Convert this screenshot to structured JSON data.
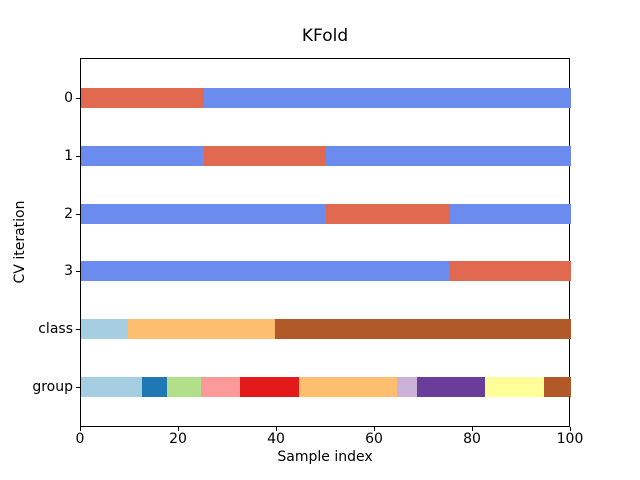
{
  "chart_data": {
    "type": "bar",
    "subtype": "cross-validation-indices",
    "orientation": "horizontal",
    "title": "KFold",
    "xlabel": "Sample index",
    "ylabel": "CV iteration",
    "xlim": [
      0,
      100
    ],
    "ylim_top_to_bottom": [
      -0.2,
      6.2
    ],
    "x_ticks": [
      0,
      20,
      40,
      60,
      80,
      100
    ],
    "grid": false,
    "legend": "none",
    "bar_thickness_px": 20,
    "colors": {
      "train": "#6b8cee",
      "test": "#e0694f",
      "axis": "#000000",
      "background": "#ffffff"
    },
    "rows": [
      {
        "label": "0",
        "y": 0.5,
        "segments": [
          {
            "start": 0,
            "end": 25,
            "role": "test",
            "color": "#e0694f"
          },
          {
            "start": 25,
            "end": 100,
            "role": "train",
            "color": "#6b8cee"
          }
        ]
      },
      {
        "label": "1",
        "y": 1.5,
        "segments": [
          {
            "start": 0,
            "end": 25,
            "role": "train",
            "color": "#6b8cee"
          },
          {
            "start": 25,
            "end": 50,
            "role": "test",
            "color": "#e0694f"
          },
          {
            "start": 50,
            "end": 100,
            "role": "train",
            "color": "#6b8cee"
          }
        ]
      },
      {
        "label": "2",
        "y": 2.5,
        "segments": [
          {
            "start": 0,
            "end": 50,
            "role": "train",
            "color": "#6b8cee"
          },
          {
            "start": 50,
            "end": 75,
            "role": "test",
            "color": "#e0694f"
          },
          {
            "start": 75,
            "end": 100,
            "role": "train",
            "color": "#6b8cee"
          }
        ]
      },
      {
        "label": "3",
        "y": 3.5,
        "segments": [
          {
            "start": 0,
            "end": 75,
            "role": "train",
            "color": "#6b8cee"
          },
          {
            "start": 75,
            "end": 100,
            "role": "test",
            "color": "#e0694f"
          }
        ]
      },
      {
        "label": "class",
        "y": 4.5,
        "segments": [
          {
            "start": 0,
            "end": 9.5,
            "class": "0",
            "color": "#a6cee3"
          },
          {
            "start": 9.5,
            "end": 39.5,
            "class": "1",
            "color": "#fdbf6f"
          },
          {
            "start": 39.5,
            "end": 100,
            "class": "2",
            "color": "#b15928"
          }
        ]
      },
      {
        "label": "group",
        "y": 5.5,
        "segments": [
          {
            "start": 0,
            "end": 12.5,
            "group": "0",
            "color": "#a6cee3"
          },
          {
            "start": 12.5,
            "end": 17.5,
            "group": "1",
            "color": "#1f78b4"
          },
          {
            "start": 17.5,
            "end": 24.5,
            "group": "2",
            "color": "#b2df8a"
          },
          {
            "start": 24.5,
            "end": 32.5,
            "group": "3",
            "color": "#fb9a99"
          },
          {
            "start": 32.5,
            "end": 44.5,
            "group": "4",
            "color": "#e31a1c"
          },
          {
            "start": 44.5,
            "end": 64.5,
            "group": "5",
            "color": "#fdbf6f"
          },
          {
            "start": 64.5,
            "end": 68.5,
            "group": "6",
            "color": "#cab2d6"
          },
          {
            "start": 68.5,
            "end": 82.5,
            "group": "7",
            "color": "#6a3d9a"
          },
          {
            "start": 82.5,
            "end": 94.5,
            "group": "8",
            "color": "#ffff99"
          },
          {
            "start": 94.5,
            "end": 100,
            "group": "9",
            "color": "#b15928"
          }
        ]
      }
    ]
  }
}
